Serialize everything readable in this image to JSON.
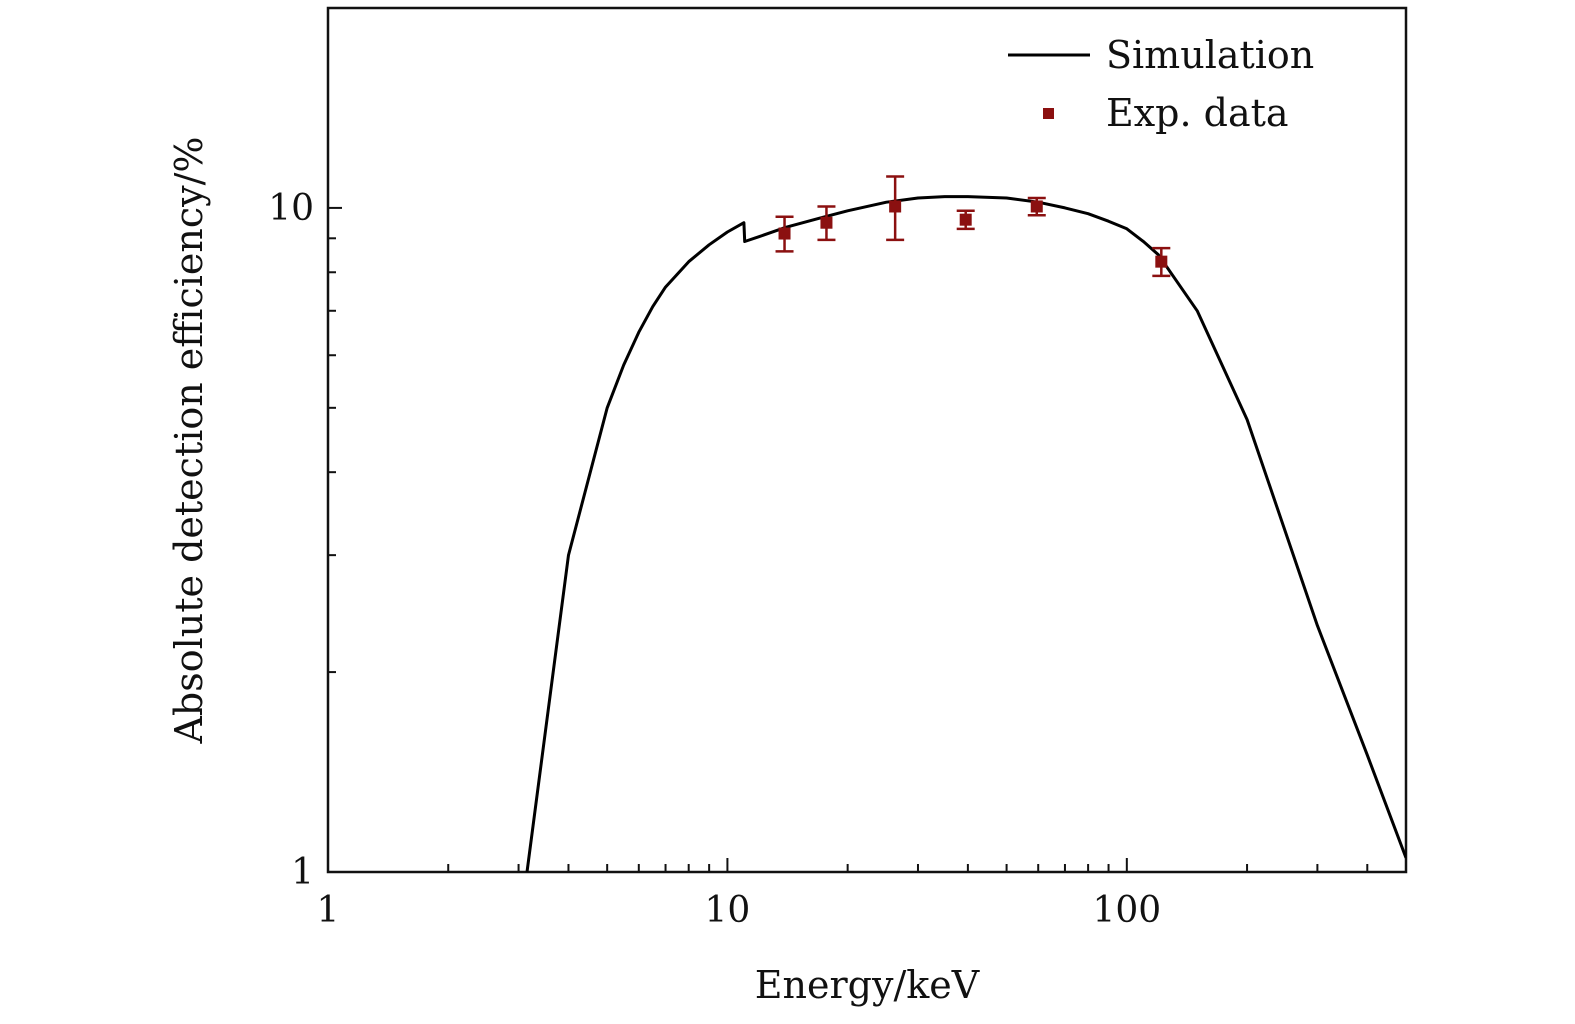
{
  "chart_data": {
    "type": "line",
    "title": "",
    "xlabel": "Energy/keV",
    "ylabel": "Absolute detection efficiency/%",
    "xscale": "log",
    "yscale": "log",
    "xlim": [
      1,
      500
    ],
    "ylim": [
      1,
      20
    ],
    "x_ticks": [
      {
        "value": 1,
        "label": "1"
      },
      {
        "value": 10,
        "label": "10"
      },
      {
        "value": 100,
        "label": "100"
      }
    ],
    "y_ticks": [
      {
        "value": 1,
        "label": "1"
      },
      {
        "value": 10,
        "label": "10"
      }
    ],
    "grid": false,
    "legend_position": "top-right",
    "series": [
      {
        "name": "Simulation",
        "kind": "line",
        "color": "#000000",
        "x": [
          3.15,
          4,
          5,
          5.5,
          6,
          6.5,
          7,
          8,
          9,
          10,
          11,
          11.05,
          12,
          14,
          17,
          20,
          25,
          30,
          35,
          40,
          50,
          60,
          70,
          80,
          90,
          100,
          110,
          120,
          150,
          200,
          300,
          400,
          500
        ],
        "y": [
          1.0,
          3.0,
          5.0,
          5.8,
          6.5,
          7.1,
          7.6,
          8.3,
          8.8,
          9.2,
          9.5,
          8.9,
          9.05,
          9.35,
          9.65,
          9.9,
          10.2,
          10.35,
          10.4,
          10.4,
          10.35,
          10.2,
          10.0,
          9.8,
          9.55,
          9.3,
          8.9,
          8.5,
          7.0,
          4.8,
          2.35,
          1.5,
          1.05
        ]
      },
      {
        "name": "Exp. data",
        "kind": "errorbar",
        "color": "#8B1010",
        "x": [
          13.9,
          17.7,
          26.3,
          39.5,
          59.5,
          122
        ],
        "y": [
          9.15,
          9.5,
          10.05,
          9.6,
          10.05,
          8.3
        ],
        "yerr": [
          0.55,
          0.55,
          1.1,
          0.3,
          0.3,
          0.4
        ]
      }
    ]
  }
}
